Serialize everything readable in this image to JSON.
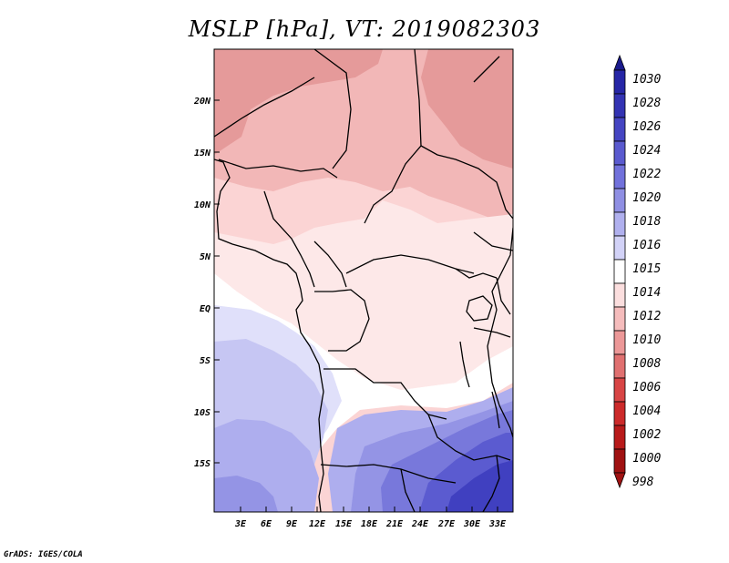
{
  "title": "MSLP [hPa], VT: 2019082303",
  "credit": "GrADS: IGES/COLA",
  "axes": {
    "lat_ticks": [
      "20N",
      "15N",
      "10N",
      "5N",
      "EQ",
      "5S",
      "10S",
      "15S"
    ],
    "lon_ticks": [
      "3E",
      "6E",
      "9E",
      "12E",
      "15E",
      "18E",
      "21E",
      "24E",
      "27E",
      "30E",
      "33E"
    ]
  },
  "colorbar": {
    "levels": [
      "1030",
      "1028",
      "1026",
      "1024",
      "1022",
      "1020",
      "1018",
      "1016",
      "1015",
      "1014",
      "1012",
      "1010",
      "1008",
      "1006",
      "1004",
      "1002",
      "1000",
      "998"
    ],
    "colors": [
      "#1a1a8c",
      "#2626a6",
      "#3333b3",
      "#4545c2",
      "#5a5acf",
      "#7171db",
      "#8f8fe3",
      "#b0b0ee",
      "#d2d2f7",
      "#ffffff",
      "#fbdede",
      "#f5bcbc",
      "#ec9898",
      "#e07070",
      "#d84545",
      "#cc2a2a",
      "#b81a1a",
      "#a01212"
    ]
  },
  "map_colors": {
    "p1008": "#e59a9a",
    "p1010": "#f2b7b7",
    "p1012": "#fbd4d4",
    "p1013": "#fde8e8",
    "p1014": "#ffffff",
    "p1015": "#e0e0fa",
    "p1016": "#c6c6f3",
    "p1018": "#aeaeee",
    "p1020": "#9494e5",
    "p1022": "#7878db",
    "p1024": "#5b5bd0",
    "p1026": "#4040c0"
  }
}
